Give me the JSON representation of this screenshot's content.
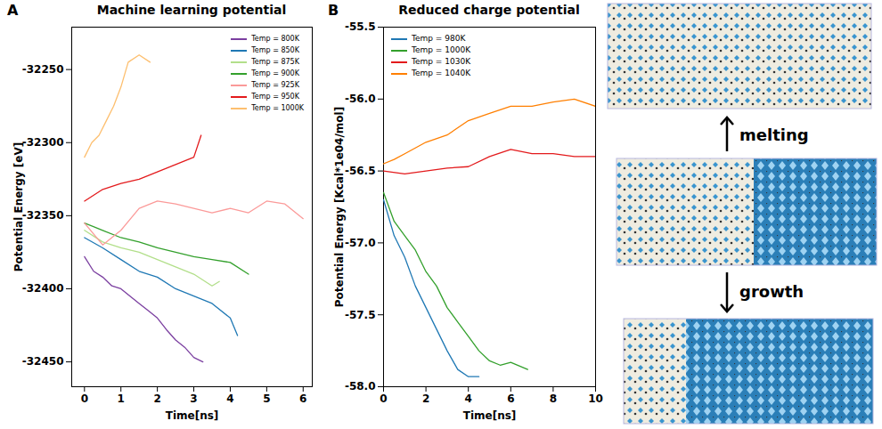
{
  "chart_data": [
    {
      "type": "line",
      "panel_label": "A",
      "title": "Machine learning potential",
      "x_label": "Time[ns]",
      "y_label": "Potential Energy [eV]",
      "xlim": [
        -0.35,
        6.25
      ],
      "xticks": [
        0,
        1,
        2,
        3,
        4,
        5,
        6
      ],
      "ylim": [
        -32467,
        -32221
      ],
      "yticks": [
        -32450,
        -32400,
        -32350,
        -32300,
        -32250
      ],
      "grid": false,
      "legend": "top-right",
      "series": [
        {
          "name": "Temp = 800K",
          "color": "#7b3fa0",
          "x": [
            0,
            0.25,
            0.5,
            0.75,
            1,
            1.25,
            1.5,
            1.75,
            2,
            2.25,
            2.5,
            2.75,
            3,
            3.25
          ],
          "values": [
            -32378,
            -32388,
            -32392,
            -32398,
            -32400,
            -32405,
            -32410,
            -32415,
            -32420,
            -32428,
            -32435,
            -32440,
            -32447,
            -32450
          ]
        },
        {
          "name": "Temp = 850K",
          "color": "#1f78b4",
          "x": [
            0,
            0.5,
            1,
            1.5,
            2,
            2.5,
            3,
            3.5,
            4,
            4.2
          ],
          "values": [
            -32365,
            -32372,
            -32380,
            -32388,
            -32392,
            -32400,
            -32405,
            -32410,
            -32420,
            -32432
          ]
        },
        {
          "name": "Temp = 875K",
          "color": "#b2df8a",
          "x": [
            0,
            0.5,
            1,
            1.5,
            2,
            2.5,
            3,
            3.5,
            3.7
          ],
          "values": [
            -32360,
            -32368,
            -32372,
            -32375,
            -32380,
            -32385,
            -32390,
            -32398,
            -32395
          ]
        },
        {
          "name": "Temp = 900K",
          "color": "#33a02c",
          "x": [
            0,
            0.5,
            1,
            1.5,
            2,
            2.5,
            3,
            3.5,
            4,
            4.5
          ],
          "values": [
            -32355,
            -32360,
            -32365,
            -32368,
            -32372,
            -32375,
            -32378,
            -32380,
            -32382,
            -32390
          ]
        },
        {
          "name": "Temp = 925K",
          "color": "#fb9a99",
          "x": [
            0,
            0.5,
            1,
            1.5,
            2,
            2.5,
            3,
            3.5,
            4,
            4.5,
            5,
            5.5,
            6
          ],
          "values": [
            -32355,
            -32370,
            -32360,
            -32345,
            -32340,
            -32342,
            -32345,
            -32348,
            -32345,
            -32348,
            -32340,
            -32342,
            -32352
          ]
        },
        {
          "name": "Temp = 950K",
          "color": "#e31a1c",
          "x": [
            0,
            0.5,
            1,
            1.5,
            2,
            2.5,
            3,
            3.2
          ],
          "values": [
            -32340,
            -32332,
            -32328,
            -32325,
            -32320,
            -32315,
            -32310,
            -32295
          ]
        },
        {
          "name": "Temp = 1000K",
          "color": "#fdbf6f",
          "x": [
            0,
            0.2,
            0.4,
            0.6,
            0.8,
            1,
            1.2,
            1.5,
            1.8
          ],
          "values": [
            -32310,
            -32300,
            -32295,
            -32285,
            -32275,
            -32262,
            -32245,
            -32240,
            -32245
          ]
        }
      ]
    },
    {
      "type": "line",
      "panel_label": "B",
      "title": "Reduced charge potential",
      "x_label": "Time[ns]",
      "y_label": "Potential Energy [Kcal*1e04/mol]",
      "xlim": [
        0,
        10
      ],
      "xticks": [
        0,
        2,
        4,
        6,
        8,
        10
      ],
      "ylim": [
        -58,
        -55.5
      ],
      "yticks": [
        {
          "value": -58,
          "label": "-58.0"
        },
        -57.5,
        {
          "value": -57,
          "label": "-57.0"
        },
        -56.5,
        {
          "value": -56,
          "label": "-56.0"
        },
        -55.5
      ],
      "grid": false,
      "legend": "top-left",
      "series": [
        {
          "name": "Temp = 980K",
          "color": "#1f78b4",
          "x": [
            0,
            0.5,
            1,
            1.5,
            2,
            2.5,
            3,
            3.5,
            4,
            4.5
          ],
          "values": [
            -56.7,
            -56.95,
            -57.1,
            -57.3,
            -57.45,
            -57.6,
            -57.75,
            -57.88,
            -57.93,
            -57.93
          ]
        },
        {
          "name": "Temp = 1000K",
          "color": "#33a02c",
          "x": [
            0,
            0.5,
            1,
            1.5,
            2,
            2.5,
            3,
            3.5,
            4,
            4.5,
            5,
            5.5,
            6,
            6.8
          ],
          "values": [
            -56.65,
            -56.85,
            -56.95,
            -57.05,
            -57.2,
            -57.3,
            -57.45,
            -57.55,
            -57.65,
            -57.75,
            -57.82,
            -57.85,
            -57.83,
            -57.88
          ]
        },
        {
          "name": "Temp = 1030K",
          "color": "#e31a1c",
          "x": [
            0,
            1,
            2,
            3,
            4,
            5,
            6,
            7,
            8,
            9,
            10
          ],
          "values": [
            -56.5,
            -56.52,
            -56.5,
            -56.48,
            -56.47,
            -56.4,
            -56.35,
            -56.38,
            -56.38,
            -56.4,
            -56.4
          ]
        },
        {
          "name": "Temp = 1040K",
          "color": "#ff7f00",
          "x": [
            0,
            0.5,
            1,
            2,
            3,
            4,
            5,
            6,
            7,
            8,
            9,
            10
          ],
          "values": [
            -56.45,
            -56.42,
            -56.38,
            -56.3,
            -56.25,
            -56.15,
            -56.1,
            -56.05,
            -56.05,
            -56.02,
            -56.0,
            -56.05
          ]
        }
      ]
    }
  ],
  "side_panel": {
    "arrows": [
      "melting",
      "growth"
    ]
  }
}
